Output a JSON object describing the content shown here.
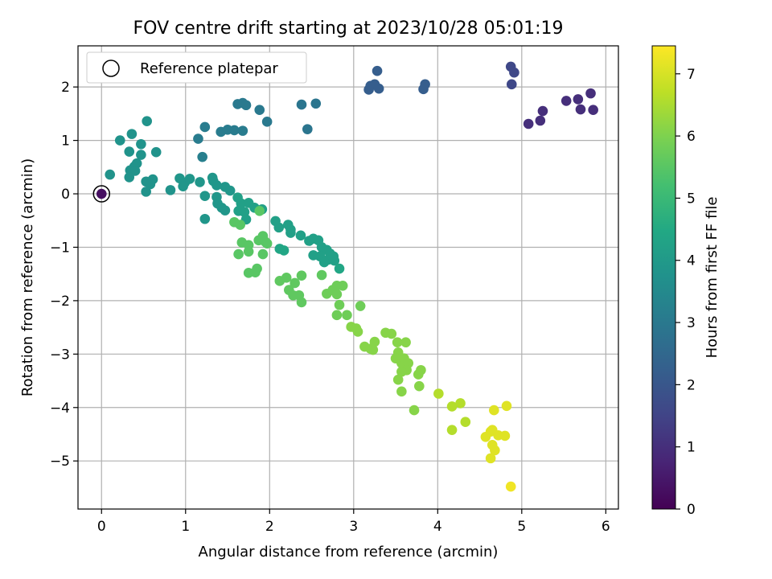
{
  "chart_data": {
    "type": "scatter",
    "title": "FOV centre drift starting at 2023/10/28 05:01:19",
    "xlabel": "Angular distance from reference (arcmin)",
    "ylabel": "Rotation from reference (arcmin)",
    "colorbar_label": "Hours from first FF file",
    "xlim": [
      -0.28,
      6.15
    ],
    "ylim": [
      -5.9,
      2.77
    ],
    "clim": [
      0,
      7.45
    ],
    "x_ticks": [
      "0",
      "1",
      "2",
      "3",
      "4",
      "5",
      "6"
    ],
    "y_ticks": [
      "2",
      "1",
      "0",
      "−1",
      "−2",
      "−3",
      "−4",
      "−5"
    ],
    "colorbar_ticks": [
      "0",
      "1",
      "2",
      "3",
      "4",
      "5",
      "6",
      "7"
    ],
    "grid": true,
    "legend": {
      "placement": "top-left",
      "entries": [
        "Reference platepar"
      ]
    },
    "colormap": "viridis",
    "reference_point": {
      "x": 0,
      "y": 0
    },
    "points": [
      {
        "x": 0.0,
        "y": 0.0,
        "h": 0.3
      },
      {
        "x": 5.08,
        "y": 1.31,
        "h": 1.0
      },
      {
        "x": 5.22,
        "y": 1.37,
        "h": 1.0
      },
      {
        "x": 5.25,
        "y": 1.55,
        "h": 1.0
      },
      {
        "x": 5.53,
        "y": 1.74,
        "h": 1.0
      },
      {
        "x": 5.67,
        "y": 1.77,
        "h": 1.0
      },
      {
        "x": 5.7,
        "y": 1.58,
        "h": 1.0
      },
      {
        "x": 5.82,
        "y": 1.88,
        "h": 1.0
      },
      {
        "x": 5.85,
        "y": 1.57,
        "h": 1.0
      },
      {
        "x": 4.87,
        "y": 2.38,
        "h": 1.6
      },
      {
        "x": 4.91,
        "y": 2.27,
        "h": 1.6
      },
      {
        "x": 4.88,
        "y": 2.05,
        "h": 1.6
      },
      {
        "x": 3.28,
        "y": 2.3,
        "h": 2.2
      },
      {
        "x": 3.2,
        "y": 2.02,
        "h": 2.2
      },
      {
        "x": 3.25,
        "y": 2.05,
        "h": 2.2
      },
      {
        "x": 3.18,
        "y": 1.95,
        "h": 2.2
      },
      {
        "x": 3.3,
        "y": 1.97,
        "h": 2.2
      },
      {
        "x": 3.83,
        "y": 1.96,
        "h": 2.2
      },
      {
        "x": 3.85,
        "y": 2.05,
        "h": 2.2
      },
      {
        "x": 2.38,
        "y": 1.67,
        "h": 2.9
      },
      {
        "x": 2.55,
        "y": 1.69,
        "h": 2.9
      },
      {
        "x": 2.45,
        "y": 1.21,
        "h": 2.9
      },
      {
        "x": 1.62,
        "y": 1.68,
        "h": 3.0
      },
      {
        "x": 1.68,
        "y": 1.7,
        "h": 3.0
      },
      {
        "x": 1.72,
        "y": 1.66,
        "h": 3.0
      },
      {
        "x": 1.88,
        "y": 1.57,
        "h": 3.0
      },
      {
        "x": 1.97,
        "y": 1.35,
        "h": 3.0
      },
      {
        "x": 1.42,
        "y": 1.16,
        "h": 3.1
      },
      {
        "x": 1.5,
        "y": 1.2,
        "h": 3.1
      },
      {
        "x": 1.58,
        "y": 1.19,
        "h": 3.1
      },
      {
        "x": 1.68,
        "y": 1.18,
        "h": 3.1
      },
      {
        "x": 1.23,
        "y": 1.25,
        "h": 3.1
      },
      {
        "x": 1.15,
        "y": 1.03,
        "h": 3.1
      },
      {
        "x": 1.2,
        "y": 0.69,
        "h": 3.2
      },
      {
        "x": 0.54,
        "y": 1.36,
        "h": 3.8
      },
      {
        "x": 0.22,
        "y": 1.0,
        "h": 3.8
      },
      {
        "x": 0.36,
        "y": 1.12,
        "h": 3.8
      },
      {
        "x": 0.47,
        "y": 0.93,
        "h": 3.8
      },
      {
        "x": 0.33,
        "y": 0.79,
        "h": 3.8
      },
      {
        "x": 0.47,
        "y": 0.73,
        "h": 3.8
      },
      {
        "x": 0.65,
        "y": 0.78,
        "h": 3.8
      },
      {
        "x": 0.42,
        "y": 0.57,
        "h": 3.8
      },
      {
        "x": 0.39,
        "y": 0.51,
        "h": 3.8
      },
      {
        "x": 0.34,
        "y": 0.44,
        "h": 3.8
      },
      {
        "x": 0.4,
        "y": 0.43,
        "h": 3.8
      },
      {
        "x": 0.33,
        "y": 0.31,
        "h": 3.8
      },
      {
        "x": 0.1,
        "y": 0.36,
        "h": 3.8
      },
      {
        "x": 0.53,
        "y": 0.23,
        "h": 3.8
      },
      {
        "x": 0.61,
        "y": 0.27,
        "h": 3.8
      },
      {
        "x": 0.58,
        "y": 0.18,
        "h": 3.8
      },
      {
        "x": 0.53,
        "y": 0.04,
        "h": 3.8
      },
      {
        "x": 0.82,
        "y": 0.07,
        "h": 3.8
      },
      {
        "x": 0.93,
        "y": 0.29,
        "h": 3.9
      },
      {
        "x": 0.99,
        "y": 0.21,
        "h": 3.9
      },
      {
        "x": 1.05,
        "y": 0.28,
        "h": 3.9
      },
      {
        "x": 0.97,
        "y": 0.14,
        "h": 3.9
      },
      {
        "x": 1.17,
        "y": 0.22,
        "h": 3.9
      },
      {
        "x": 1.32,
        "y": 0.3,
        "h": 3.9
      },
      {
        "x": 1.33,
        "y": 0.24,
        "h": 3.9
      },
      {
        "x": 1.37,
        "y": 0.16,
        "h": 3.9
      },
      {
        "x": 1.47,
        "y": 0.13,
        "h": 3.9
      },
      {
        "x": 1.53,
        "y": 0.06,
        "h": 3.9
      },
      {
        "x": 1.23,
        "y": -0.04,
        "h": 3.9
      },
      {
        "x": 1.37,
        "y": -0.06,
        "h": 3.9
      },
      {
        "x": 1.38,
        "y": -0.18,
        "h": 3.9
      },
      {
        "x": 1.43,
        "y": -0.26,
        "h": 3.9
      },
      {
        "x": 1.47,
        "y": -0.31,
        "h": 3.9
      },
      {
        "x": 1.23,
        "y": -0.47,
        "h": 3.9
      },
      {
        "x": 1.62,
        "y": -0.07,
        "h": 4.2
      },
      {
        "x": 1.66,
        "y": -0.18,
        "h": 4.2
      },
      {
        "x": 1.75,
        "y": -0.17,
        "h": 4.2
      },
      {
        "x": 1.82,
        "y": -0.26,
        "h": 4.2
      },
      {
        "x": 1.63,
        "y": -0.32,
        "h": 4.2
      },
      {
        "x": 1.7,
        "y": -0.34,
        "h": 4.2
      },
      {
        "x": 1.72,
        "y": -0.48,
        "h": 4.2
      },
      {
        "x": 1.91,
        "y": -0.29,
        "h": 4.2
      },
      {
        "x": 2.07,
        "y": -0.51,
        "h": 4.2
      },
      {
        "x": 2.11,
        "y": -0.63,
        "h": 4.2
      },
      {
        "x": 2.22,
        "y": -0.58,
        "h": 4.2
      },
      {
        "x": 2.25,
        "y": -0.67,
        "h": 4.2
      },
      {
        "x": 2.25,
        "y": -0.73,
        "h": 4.2
      },
      {
        "x": 2.37,
        "y": -0.78,
        "h": 4.2
      },
      {
        "x": 2.47,
        "y": -0.88,
        "h": 4.2
      },
      {
        "x": 2.52,
        "y": -0.84,
        "h": 4.2
      },
      {
        "x": 2.58,
        "y": -0.87,
        "h": 4.2
      },
      {
        "x": 2.62,
        "y": -1.0,
        "h": 4.2
      },
      {
        "x": 2.68,
        "y": -1.05,
        "h": 4.2
      },
      {
        "x": 2.72,
        "y": -1.12,
        "h": 4.2
      },
      {
        "x": 2.76,
        "y": -1.17,
        "h": 4.2
      },
      {
        "x": 2.7,
        "y": -1.23,
        "h": 4.2
      },
      {
        "x": 2.77,
        "y": -1.25,
        "h": 4.2
      },
      {
        "x": 2.52,
        "y": -1.15,
        "h": 4.2
      },
      {
        "x": 2.6,
        "y": -1.17,
        "h": 4.2
      },
      {
        "x": 2.65,
        "y": -1.28,
        "h": 4.2
      },
      {
        "x": 2.83,
        "y": -1.4,
        "h": 4.4
      },
      {
        "x": 2.12,
        "y": -1.03,
        "h": 4.4
      },
      {
        "x": 2.17,
        "y": -1.06,
        "h": 4.4
      },
      {
        "x": 1.58,
        "y": -0.53,
        "h": 5.5
      },
      {
        "x": 1.65,
        "y": -0.58,
        "h": 5.5
      },
      {
        "x": 1.88,
        "y": -0.32,
        "h": 5.5
      },
      {
        "x": 1.67,
        "y": -0.91,
        "h": 5.5
      },
      {
        "x": 1.75,
        "y": -0.96,
        "h": 5.5
      },
      {
        "x": 1.87,
        "y": -0.87,
        "h": 5.5
      },
      {
        "x": 1.92,
        "y": -0.79,
        "h": 5.5
      },
      {
        "x": 1.95,
        "y": -0.9,
        "h": 5.5
      },
      {
        "x": 1.97,
        "y": -0.93,
        "h": 5.5
      },
      {
        "x": 1.63,
        "y": -1.13,
        "h": 5.5
      },
      {
        "x": 1.75,
        "y": -1.08,
        "h": 5.5
      },
      {
        "x": 1.92,
        "y": -1.13,
        "h": 5.5
      },
      {
        "x": 1.85,
        "y": -1.4,
        "h": 5.5
      },
      {
        "x": 1.75,
        "y": -1.48,
        "h": 5.5
      },
      {
        "x": 1.83,
        "y": -1.47,
        "h": 5.5
      },
      {
        "x": 2.12,
        "y": -1.63,
        "h": 5.6
      },
      {
        "x": 2.2,
        "y": -1.57,
        "h": 5.6
      },
      {
        "x": 2.3,
        "y": -1.67,
        "h": 5.6
      },
      {
        "x": 2.23,
        "y": -1.8,
        "h": 5.6
      },
      {
        "x": 2.28,
        "y": -1.9,
        "h": 5.6
      },
      {
        "x": 2.35,
        "y": -1.9,
        "h": 5.6
      },
      {
        "x": 2.38,
        "y": -2.03,
        "h": 5.6
      },
      {
        "x": 2.38,
        "y": -1.53,
        "h": 5.6
      },
      {
        "x": 2.62,
        "y": -1.52,
        "h": 5.6
      },
      {
        "x": 2.68,
        "y": -1.87,
        "h": 5.8
      },
      {
        "x": 2.75,
        "y": -1.8,
        "h": 5.8
      },
      {
        "x": 2.8,
        "y": -1.72,
        "h": 5.8
      },
      {
        "x": 2.87,
        "y": -1.72,
        "h": 5.8
      },
      {
        "x": 2.8,
        "y": -1.88,
        "h": 5.8
      },
      {
        "x": 2.83,
        "y": -2.08,
        "h": 5.8
      },
      {
        "x": 2.8,
        "y": -2.27,
        "h": 5.8
      },
      {
        "x": 2.92,
        "y": -2.27,
        "h": 5.8
      },
      {
        "x": 3.08,
        "y": -2.1,
        "h": 5.8
      },
      {
        "x": 2.97,
        "y": -2.49,
        "h": 6.1
      },
      {
        "x": 3.03,
        "y": -2.52,
        "h": 6.1
      },
      {
        "x": 3.05,
        "y": -2.58,
        "h": 6.1
      },
      {
        "x": 3.13,
        "y": -2.86,
        "h": 6.1
      },
      {
        "x": 3.2,
        "y": -2.9,
        "h": 6.1
      },
      {
        "x": 3.23,
        "y": -2.92,
        "h": 6.1
      },
      {
        "x": 3.25,
        "y": -2.77,
        "h": 6.1
      },
      {
        "x": 3.38,
        "y": -2.6,
        "h": 6.1
      },
      {
        "x": 3.45,
        "y": -2.62,
        "h": 6.1
      },
      {
        "x": 3.52,
        "y": -2.78,
        "h": 6.1
      },
      {
        "x": 3.62,
        "y": -2.78,
        "h": 6.1
      },
      {
        "x": 3.53,
        "y": -2.97,
        "h": 6.1
      },
      {
        "x": 3.5,
        "y": -3.08,
        "h": 6.1
      },
      {
        "x": 3.57,
        "y": -3.17,
        "h": 6.1
      },
      {
        "x": 3.6,
        "y": -3.08,
        "h": 6.1
      },
      {
        "x": 3.65,
        "y": -3.17,
        "h": 6.1
      },
      {
        "x": 3.63,
        "y": -3.3,
        "h": 6.1
      },
      {
        "x": 3.57,
        "y": -3.33,
        "h": 6.1
      },
      {
        "x": 3.53,
        "y": -3.48,
        "h": 6.1
      },
      {
        "x": 3.77,
        "y": -3.38,
        "h": 6.1
      },
      {
        "x": 3.8,
        "y": -3.3,
        "h": 6.1
      },
      {
        "x": 3.78,
        "y": -3.6,
        "h": 6.1
      },
      {
        "x": 3.57,
        "y": -3.7,
        "h": 6.1
      },
      {
        "x": 3.72,
        "y": -4.05,
        "h": 6.1
      },
      {
        "x": 4.01,
        "y": -3.74,
        "h": 6.6
      },
      {
        "x": 4.17,
        "y": -3.98,
        "h": 6.6
      },
      {
        "x": 4.27,
        "y": -3.92,
        "h": 6.6
      },
      {
        "x": 4.33,
        "y": -4.27,
        "h": 6.6
      },
      {
        "x": 4.17,
        "y": -4.42,
        "h": 6.6
      },
      {
        "x": 4.57,
        "y": -4.55,
        "h": 7.1
      },
      {
        "x": 4.63,
        "y": -4.45,
        "h": 7.1
      },
      {
        "x": 4.65,
        "y": -4.42,
        "h": 7.1
      },
      {
        "x": 4.67,
        "y": -4.05,
        "h": 7.1
      },
      {
        "x": 4.72,
        "y": -4.52,
        "h": 7.1
      },
      {
        "x": 4.82,
        "y": -3.97,
        "h": 7.1
      },
      {
        "x": 4.8,
        "y": -4.53,
        "h": 7.1
      },
      {
        "x": 4.65,
        "y": -4.7,
        "h": 7.1
      },
      {
        "x": 4.68,
        "y": -4.8,
        "h": 7.1
      },
      {
        "x": 4.63,
        "y": -4.95,
        "h": 7.1
      },
      {
        "x": 4.87,
        "y": -5.48,
        "h": 7.3
      }
    ]
  }
}
